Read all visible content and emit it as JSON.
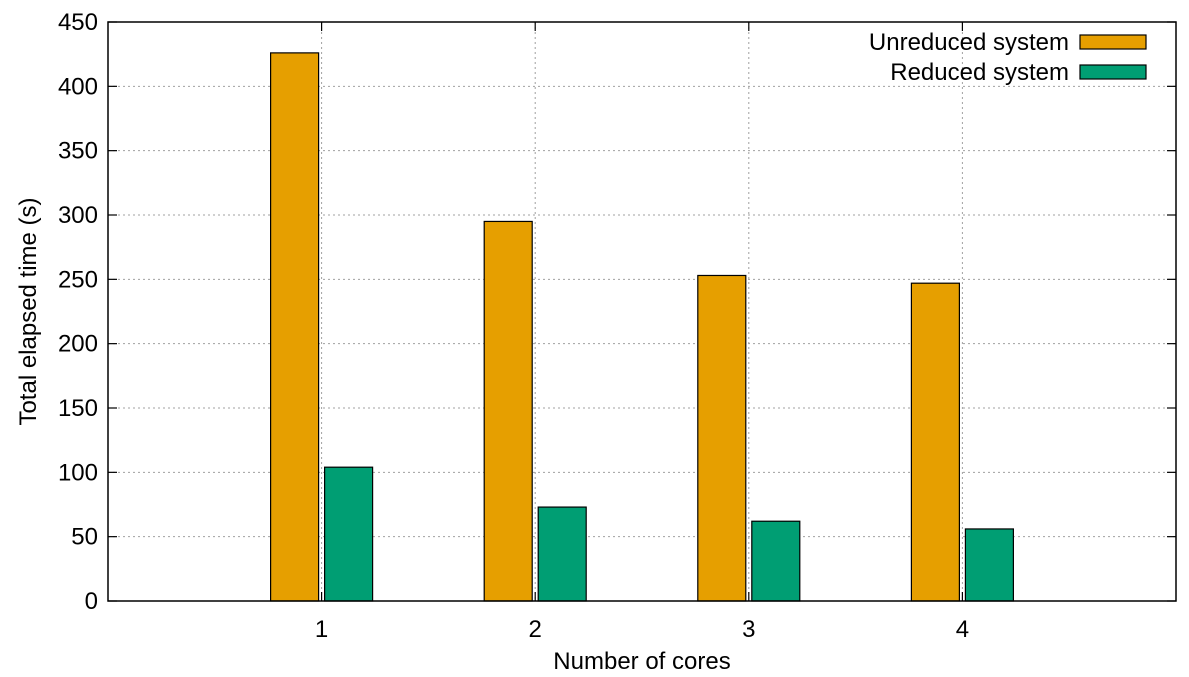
{
  "chart_data": {
    "type": "bar",
    "title": "",
    "xlabel": "Number of cores",
    "ylabel": "Total elapsed time (s)",
    "categories": [
      "1",
      "2",
      "3",
      "4"
    ],
    "xlim": [
      0,
      5
    ],
    "ylim": [
      0,
      450
    ],
    "yticks": [
      0,
      50,
      100,
      150,
      200,
      250,
      300,
      350,
      400,
      450
    ],
    "grid": true,
    "legend_position": "top-right",
    "series": [
      {
        "name": "Unreduced system",
        "color": "#e69f00",
        "values": [
          426,
          295,
          253,
          247
        ]
      },
      {
        "name": "Reduced system",
        "color": "#009e73",
        "values": [
          104,
          73,
          62,
          56
        ]
      }
    ]
  }
}
